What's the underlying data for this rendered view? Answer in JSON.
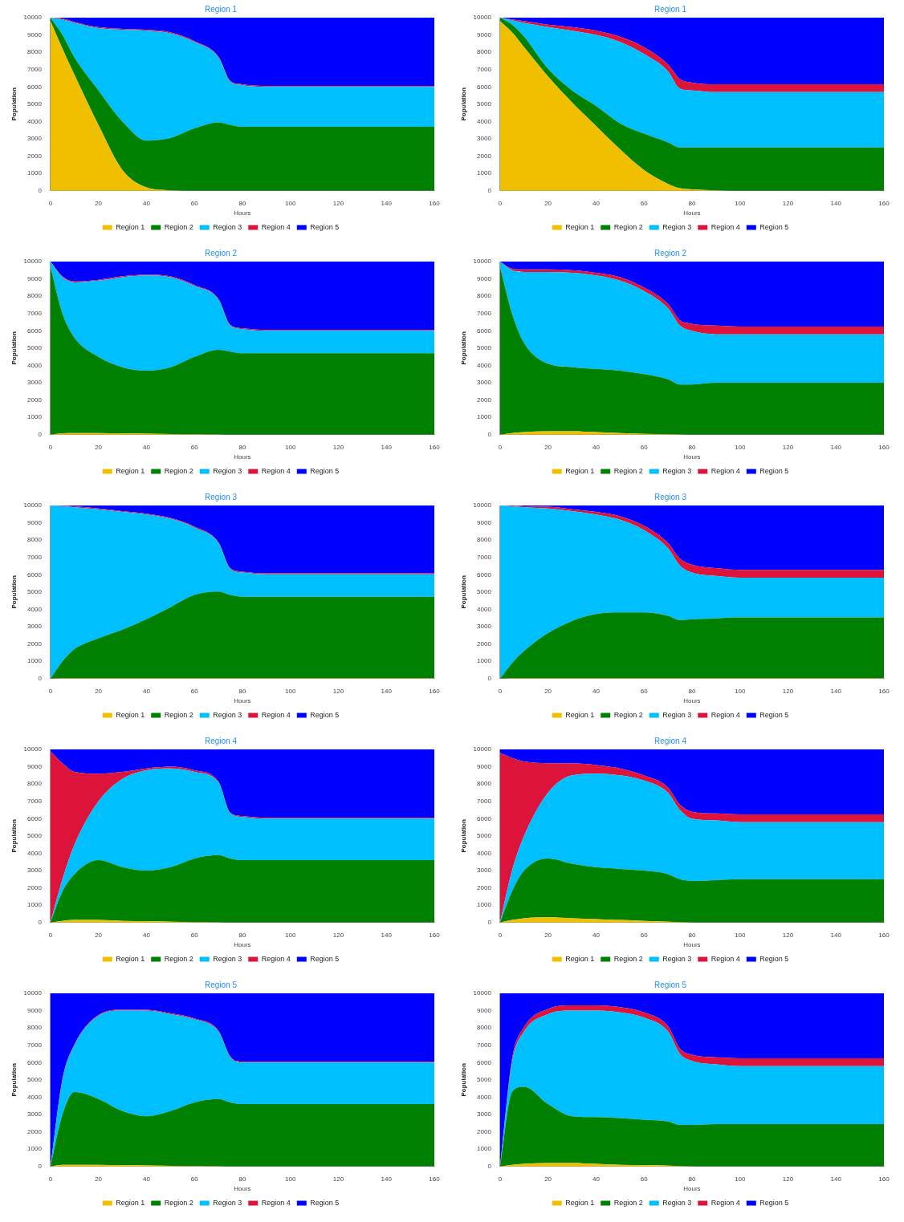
{
  "chart_data": [
    {
      "type": "area",
      "title": "Region 1",
      "xlabel": "Hours",
      "ylabel": "Population",
      "stacked": true,
      "legend": "bottom",
      "xlim": [
        0,
        160
      ],
      "xticks": [
        0,
        20,
        40,
        60,
        80,
        100,
        120,
        140,
        160
      ],
      "ylim": [
        0,
        10000
      ],
      "yticks": [
        0,
        1000,
        2000,
        3000,
        4000,
        5000,
        6000,
        7000,
        8000,
        9000,
        10000
      ],
      "x": [
        0,
        5,
        10,
        20,
        30,
        40,
        50,
        60,
        70,
        75,
        80,
        90,
        100,
        120,
        140,
        160
      ],
      "series": [
        {
          "name": "Region 1",
          "color": "#f0c000",
          "values": [
            9800,
            8200,
            6700,
            3800,
            1200,
            200,
            30,
            0,
            0,
            0,
            0,
            0,
            0,
            0,
            0,
            0
          ]
        },
        {
          "name": "Region 2",
          "color": "#008000",
          "values": [
            200,
            800,
            1000,
            2000,
            2800,
            2700,
            3020,
            3600,
            3950,
            3800,
            3700,
            3700,
            3700,
            3700,
            3700,
            3700
          ]
        },
        {
          "name": "Region 3",
          "color": "#00bfff",
          "values": [
            0,
            900,
            2000,
            3600,
            5300,
            6350,
            6050,
            5000,
            3750,
            2500,
            2400,
            2300,
            2300,
            2300,
            2300,
            2300
          ]
        },
        {
          "name": "Region 4",
          "color": "#dc143c",
          "values": [
            0,
            50,
            50,
            50,
            50,
            50,
            50,
            50,
            50,
            50,
            50,
            50,
            50,
            50,
            50,
            50
          ]
        },
        {
          "name": "Region 5",
          "color": "#0000ff",
          "values": [
            0,
            50,
            250,
            550,
            650,
            700,
            850,
            1350,
            2250,
            3650,
            3850,
            3950,
            3950,
            3950,
            3950,
            3950
          ]
        }
      ]
    },
    {
      "type": "area",
      "title": "Region 1",
      "xlabel": "Hours",
      "ylabel": "Population",
      "stacked": true,
      "legend": "bottom",
      "xlim": [
        0,
        160
      ],
      "xticks": [
        0,
        20,
        40,
        60,
        80,
        100,
        120,
        140,
        160
      ],
      "ylim": [
        0,
        10000
      ],
      "yticks": [
        0,
        1000,
        2000,
        3000,
        4000,
        5000,
        6000,
        7000,
        8000,
        9000,
        10000
      ],
      "x": [
        0,
        5,
        10,
        20,
        30,
        40,
        50,
        60,
        70,
        75,
        80,
        90,
        100,
        120,
        140,
        160
      ],
      "series": [
        {
          "name": "Region 1",
          "color": "#f0c000",
          "values": [
            9800,
            9150,
            8300,
            6600,
            5100,
            3750,
            2400,
            1200,
            400,
            150,
            80,
            30,
            0,
            0,
            0,
            0
          ]
        },
        {
          "name": "Region 2",
          "color": "#008000",
          "values": [
            200,
            450,
            600,
            450,
            700,
            1150,
            1500,
            2100,
            2400,
            2350,
            2420,
            2470,
            2500,
            2500,
            2500,
            2500
          ]
        },
        {
          "name": "Region 3",
          "color": "#00bfff",
          "values": [
            0,
            250,
            800,
            2400,
            3450,
            4100,
            4700,
            4600,
            4100,
            3400,
            3300,
            3200,
            3200,
            3200,
            3200,
            3200
          ]
        },
        {
          "name": "Region 4",
          "color": "#dc143c",
          "values": [
            0,
            50,
            100,
            150,
            200,
            250,
            300,
            400,
            400,
            550,
            450,
            450,
            450,
            450,
            450,
            450
          ]
        },
        {
          "name": "Region 5",
          "color": "#0000ff",
          "values": [
            0,
            100,
            200,
            400,
            550,
            750,
            1100,
            1700,
            2700,
            3550,
            3750,
            3850,
            3850,
            3850,
            3850,
            3850
          ]
        }
      ]
    },
    {
      "type": "area",
      "title": "Region 2",
      "xlabel": "Hours",
      "ylabel": "Population",
      "stacked": true,
      "legend": "bottom",
      "xlim": [
        0,
        160
      ],
      "xticks": [
        0,
        20,
        40,
        60,
        80,
        100,
        120,
        140,
        160
      ],
      "ylim": [
        0,
        10000
      ],
      "yticks": [
        0,
        1000,
        2000,
        3000,
        4000,
        5000,
        6000,
        7000,
        8000,
        9000,
        10000
      ],
      "x": [
        0,
        5,
        10,
        20,
        30,
        40,
        50,
        60,
        70,
        75,
        80,
        90,
        100,
        120,
        140,
        160
      ],
      "series": [
        {
          "name": "Region 1",
          "color": "#f0c000",
          "values": [
            0,
            80,
            100,
            100,
            80,
            60,
            40,
            20,
            10,
            0,
            0,
            0,
            0,
            0,
            0,
            0
          ]
        },
        {
          "name": "Region 2",
          "color": "#008000",
          "values": [
            9700,
            6920,
            5500,
            4400,
            3820,
            3640,
            3860,
            4480,
            4890,
            4800,
            4700,
            4700,
            4700,
            4700,
            4700,
            4700
          ]
        },
        {
          "name": "Region 3",
          "color": "#00bfff",
          "values": [
            300,
            2100,
            3200,
            4400,
            5200,
            5500,
            5200,
            4100,
            2900,
            1500,
            1400,
            1300,
            1300,
            1300,
            1300,
            1300
          ]
        },
        {
          "name": "Region 4",
          "color": "#dc143c",
          "values": [
            0,
            50,
            50,
            50,
            50,
            50,
            50,
            50,
            50,
            50,
            50,
            50,
            50,
            50,
            50,
            50
          ]
        },
        {
          "name": "Region 5",
          "color": "#0000ff",
          "values": [
            0,
            850,
            1150,
            1050,
            850,
            750,
            850,
            1350,
            2150,
            3650,
            3850,
            3950,
            3950,
            3950,
            3950,
            3950
          ]
        }
      ]
    },
    {
      "type": "area",
      "title": "Region 2",
      "xlabel": "Hours",
      "ylabel": "Population",
      "stacked": true,
      "legend": "bottom",
      "xlim": [
        0,
        160
      ],
      "xticks": [
        0,
        20,
        40,
        60,
        80,
        100,
        120,
        140,
        160
      ],
      "ylim": [
        0,
        10000
      ],
      "yticks": [
        0,
        1000,
        2000,
        3000,
        4000,
        5000,
        6000,
        7000,
        8000,
        9000,
        10000
      ],
      "x": [
        0,
        5,
        10,
        20,
        30,
        40,
        50,
        60,
        70,
        75,
        80,
        90,
        100,
        120,
        140,
        160
      ],
      "series": [
        {
          "name": "Region 1",
          "color": "#f0c000",
          "values": [
            0,
            100,
            150,
            200,
            200,
            150,
            100,
            50,
            20,
            10,
            0,
            0,
            0,
            0,
            0,
            0
          ]
        },
        {
          "name": "Region 2",
          "color": "#008000",
          "values": [
            9700,
            6900,
            5150,
            3900,
            3700,
            3650,
            3600,
            3450,
            3180,
            2890,
            2900,
            3000,
            3000,
            3000,
            3000,
            3000
          ]
        },
        {
          "name": "Region 3",
          "color": "#00bfff",
          "values": [
            300,
            2500,
            4100,
            5300,
            5450,
            5400,
            5200,
            4800,
            4100,
            3400,
            3100,
            2800,
            2800,
            2800,
            2800,
            2800
          ]
        },
        {
          "name": "Region 4",
          "color": "#dc143c",
          "values": [
            0,
            100,
            150,
            150,
            150,
            150,
            200,
            200,
            250,
            300,
            400,
            500,
            450,
            450,
            450,
            450
          ]
        },
        {
          "name": "Region 5",
          "color": "#0000ff",
          "values": [
            0,
            400,
            450,
            450,
            500,
            650,
            900,
            1500,
            2450,
            3400,
            3600,
            3700,
            3750,
            3750,
            3750,
            3750
          ]
        }
      ]
    },
    {
      "type": "area",
      "title": "Region 3",
      "xlabel": "Hours",
      "ylabel": "Population",
      "stacked": true,
      "legend": "bottom",
      "xlim": [
        0,
        160
      ],
      "xticks": [
        0,
        20,
        40,
        60,
        80,
        100,
        120,
        140,
        160
      ],
      "ylim": [
        0,
        10000
      ],
      "yticks": [
        0,
        1000,
        2000,
        3000,
        4000,
        5000,
        6000,
        7000,
        8000,
        9000,
        10000
      ],
      "x": [
        0,
        5,
        10,
        20,
        30,
        40,
        50,
        60,
        70,
        75,
        80,
        90,
        100,
        120,
        140,
        160
      ],
      "series": [
        {
          "name": "Region 1",
          "color": "#f0c000",
          "values": [
            0,
            30,
            30,
            30,
            30,
            30,
            30,
            30,
            30,
            30,
            30,
            30,
            30,
            30,
            30,
            30
          ]
        },
        {
          "name": "Region 2",
          "color": "#008000",
          "values": [
            0,
            970,
            1670,
            2300,
            2800,
            3400,
            4100,
            4800,
            5000,
            4800,
            4700,
            4700,
            4700,
            4700,
            4700,
            4700
          ]
        },
        {
          "name": "Region 3",
          "color": "#00bfff",
          "values": [
            10000,
            8950,
            8200,
            7450,
            6800,
            6050,
            5100,
            3900,
            2800,
            1500,
            1400,
            1300,
            1300,
            1300,
            1300,
            1300
          ]
        },
        {
          "name": "Region 4",
          "color": "#dc143c",
          "values": [
            0,
            30,
            50,
            50,
            50,
            50,
            50,
            50,
            50,
            50,
            50,
            50,
            50,
            50,
            50,
            50
          ]
        },
        {
          "name": "Region 5",
          "color": "#0000ff",
          "values": [
            0,
            20,
            50,
            200,
            350,
            500,
            750,
            1250,
            2150,
            3650,
            3850,
            3950,
            3950,
            3950,
            3950,
            3950
          ]
        }
      ]
    },
    {
      "type": "area",
      "title": "Region 3",
      "xlabel": "Hours",
      "ylabel": "Population",
      "stacked": true,
      "legend": "bottom",
      "xlim": [
        0,
        160
      ],
      "xticks": [
        0,
        20,
        40,
        60,
        80,
        100,
        120,
        140,
        160
      ],
      "ylim": [
        0,
        10000
      ],
      "yticks": [
        0,
        1000,
        2000,
        3000,
        4000,
        5000,
        6000,
        7000,
        8000,
        9000,
        10000
      ],
      "x": [
        0,
        5,
        10,
        20,
        30,
        40,
        50,
        60,
        70,
        75,
        80,
        90,
        100,
        120,
        140,
        160
      ],
      "series": [
        {
          "name": "Region 1",
          "color": "#f0c000",
          "values": [
            0,
            30,
            30,
            30,
            30,
            30,
            30,
            30,
            30,
            30,
            30,
            30,
            30,
            30,
            30,
            30
          ]
        },
        {
          "name": "Region 2",
          "color": "#008000",
          "values": [
            0,
            870,
            1570,
            2600,
            3300,
            3700,
            3800,
            3800,
            3600,
            3350,
            3400,
            3450,
            3500,
            3500,
            3500,
            3500
          ]
        },
        {
          "name": "Region 3",
          "color": "#00bfff",
          "values": [
            10000,
            9050,
            8300,
            7200,
            6350,
            5750,
            5350,
            4750,
            3900,
            3150,
            2700,
            2450,
            2300,
            2300,
            2300,
            2300
          ]
        },
        {
          "name": "Region 4",
          "color": "#dc143c",
          "values": [
            0,
            50,
            50,
            100,
            100,
            150,
            200,
            250,
            300,
            400,
            450,
            450,
            450,
            450,
            450,
            450
          ]
        },
        {
          "name": "Region 5",
          "color": "#0000ff",
          "values": [
            0,
            0,
            50,
            100,
            250,
            400,
            650,
            1200,
            2200,
            3100,
            3450,
            3650,
            3750,
            3750,
            3750,
            3750
          ]
        }
      ]
    },
    {
      "type": "area",
      "title": "Region 4",
      "xlabel": "Hours",
      "ylabel": "Population",
      "stacked": true,
      "legend": "bottom",
      "xlim": [
        0,
        160
      ],
      "xticks": [
        0,
        20,
        40,
        60,
        80,
        100,
        120,
        140,
        160
      ],
      "ylim": [
        0,
        10000
      ],
      "yticks": [
        0,
        1000,
        2000,
        3000,
        4000,
        5000,
        6000,
        7000,
        8000,
        9000,
        10000
      ],
      "x": [
        0,
        5,
        10,
        20,
        30,
        40,
        50,
        60,
        70,
        75,
        80,
        90,
        100,
        120,
        140,
        160
      ],
      "series": [
        {
          "name": "Region 1",
          "color": "#f0c000",
          "values": [
            0,
            100,
            150,
            150,
            100,
            80,
            50,
            30,
            10,
            0,
            0,
            0,
            0,
            0,
            0,
            0
          ]
        },
        {
          "name": "Region 2",
          "color": "#008000",
          "values": [
            0,
            1700,
            2650,
            3450,
            3100,
            2920,
            3150,
            3670,
            3890,
            3700,
            3600,
            3600,
            3600,
            3600,
            3600,
            3600
          ]
        },
        {
          "name": "Region 3",
          "color": "#00bfff",
          "values": [
            0,
            700,
            1700,
            3400,
            5100,
            5800,
            5700,
            5000,
            4200,
            2600,
            2500,
            2400,
            2400,
            2400,
            2400,
            2400
          ]
        },
        {
          "name": "Region 4",
          "color": "#dc143c",
          "values": [
            9900,
            6700,
            4200,
            1600,
            400,
            100,
            100,
            100,
            50,
            50,
            50,
            50,
            50,
            50,
            50,
            50
          ]
        },
        {
          "name": "Region 5",
          "color": "#0000ff",
          "values": [
            100,
            800,
            1300,
            1400,
            1300,
            1100,
            1000,
            1200,
            1850,
            3650,
            3850,
            3950,
            3950,
            3950,
            3950,
            3950
          ]
        }
      ]
    },
    {
      "type": "area",
      "title": "Region 4",
      "xlabel": "Hours",
      "ylabel": "Population",
      "stacked": true,
      "legend": "bottom",
      "xlim": [
        0,
        160
      ],
      "xticks": [
        0,
        20,
        40,
        60,
        80,
        100,
        120,
        140,
        160
      ],
      "ylim": [
        0,
        10000
      ],
      "yticks": [
        0,
        1000,
        2000,
        3000,
        4000,
        5000,
        6000,
        7000,
        8000,
        9000,
        10000
      ],
      "x": [
        0,
        5,
        10,
        20,
        30,
        40,
        50,
        60,
        70,
        75,
        80,
        90,
        100,
        120,
        140,
        160
      ],
      "series": [
        {
          "name": "Region 1",
          "color": "#f0c000",
          "values": [
            0,
            150,
            250,
            300,
            250,
            200,
            150,
            100,
            50,
            20,
            0,
            0,
            0,
            0,
            0,
            0
          ]
        },
        {
          "name": "Region 2",
          "color": "#008000",
          "values": [
            0,
            1650,
            2750,
            3400,
            3150,
            3000,
            2950,
            2900,
            2750,
            2480,
            2400,
            2450,
            2500,
            2500,
            2500,
            2500
          ]
        },
        {
          "name": "Region 3",
          "color": "#00bfff",
          "values": [
            0,
            1200,
            2000,
            3800,
            5100,
            5400,
            5400,
            5200,
            4700,
            4000,
            3600,
            3450,
            3300,
            3300,
            3300,
            3300
          ]
        },
        {
          "name": "Region 4",
          "color": "#dc143c",
          "values": [
            9800,
            6500,
            4300,
            1700,
            700,
            500,
            400,
            300,
            300,
            300,
            400,
            400,
            450,
            450,
            450,
            450
          ]
        },
        {
          "name": "Region 5",
          "color": "#0000ff",
          "values": [
            200,
            500,
            700,
            800,
            800,
            900,
            1100,
            1500,
            2200,
            3200,
            3600,
            3700,
            3750,
            3750,
            3750,
            3750
          ]
        }
      ]
    },
    {
      "type": "area",
      "title": "Region 5",
      "xlabel": "Hours",
      "ylabel": "Population",
      "stacked": true,
      "legend": "bottom",
      "xlim": [
        0,
        160
      ],
      "xticks": [
        0,
        20,
        40,
        60,
        80,
        100,
        120,
        140,
        160
      ],
      "ylim": [
        0,
        10000
      ],
      "yticks": [
        0,
        1000,
        2000,
        3000,
        4000,
        5000,
        6000,
        7000,
        8000,
        9000,
        10000
      ],
      "x": [
        0,
        5,
        10,
        20,
        30,
        40,
        50,
        60,
        70,
        75,
        80,
        90,
        100,
        120,
        140,
        160
      ],
      "series": [
        {
          "name": "Region 1",
          "color": "#f0c000",
          "values": [
            0,
            100,
            100,
            100,
            80,
            60,
            40,
            20,
            10,
            0,
            0,
            0,
            0,
            0,
            0,
            0
          ]
        },
        {
          "name": "Region 2",
          "color": "#008000",
          "values": [
            0,
            2900,
            4200,
            3800,
            3120,
            2840,
            3160,
            3680,
            3890,
            3700,
            3600,
            3600,
            3600,
            3600,
            3600,
            3600
          ]
        },
        {
          "name": "Region 3",
          "color": "#00bfff",
          "values": [
            0,
            2000,
            2700,
            4800,
            5800,
            6100,
            5600,
            4800,
            3900,
            2600,
            2400,
            2400,
            2400,
            2400,
            2400,
            2400
          ]
        },
        {
          "name": "Region 4",
          "color": "#dc143c",
          "values": [
            0,
            50,
            50,
            50,
            50,
            50,
            50,
            50,
            50,
            50,
            50,
            50,
            50,
            50,
            50,
            50
          ]
        },
        {
          "name": "Region 5",
          "color": "#0000ff",
          "values": [
            10000,
            4950,
            2950,
            1250,
            950,
            950,
            1150,
            1450,
            2150,
            3650,
            3950,
            3950,
            3950,
            3950,
            3950,
            3950
          ]
        }
      ]
    },
    {
      "type": "area",
      "title": "Region 5",
      "xlabel": "Hours",
      "ylabel": "Population",
      "stacked": true,
      "legend": "bottom",
      "xlim": [
        0,
        160
      ],
      "xticks": [
        0,
        20,
        40,
        60,
        80,
        100,
        120,
        140,
        160
      ],
      "ylim": [
        0,
        10000
      ],
      "yticks": [
        0,
        1000,
        2000,
        3000,
        4000,
        5000,
        6000,
        7000,
        8000,
        9000,
        10000
      ],
      "x": [
        0,
        5,
        10,
        20,
        30,
        40,
        50,
        60,
        70,
        75,
        80,
        90,
        100,
        120,
        140,
        160
      ],
      "series": [
        {
          "name": "Region 1",
          "color": "#f0c000",
          "values": [
            0,
            100,
            150,
            200,
            200,
            150,
            100,
            80,
            50,
            20,
            0,
            0,
            0,
            0,
            0,
            0
          ]
        },
        {
          "name": "Region 2",
          "color": "#008000",
          "values": [
            0,
            4200,
            4450,
            3400,
            2700,
            2700,
            2700,
            2620,
            2550,
            2380,
            2400,
            2450,
            2450,
            2450,
            2450,
            2450
          ]
        },
        {
          "name": "Region 3",
          "color": "#00bfff",
          "values": [
            0,
            1700,
            3200,
            5200,
            6100,
            6150,
            6100,
            5900,
            5200,
            4100,
            3700,
            3450,
            3350,
            3350,
            3350,
            3350
          ]
        },
        {
          "name": "Region 4",
          "color": "#dc143c",
          "values": [
            0,
            200,
            250,
            300,
            300,
            300,
            300,
            300,
            300,
            300,
            350,
            400,
            450,
            450,
            450,
            450
          ]
        },
        {
          "name": "Region 5",
          "color": "#0000ff",
          "values": [
            10000,
            3800,
            1950,
            900,
            700,
            700,
            800,
            1100,
            1900,
            3200,
            3550,
            3700,
            3750,
            3750,
            3750,
            3750
          ]
        }
      ]
    }
  ]
}
